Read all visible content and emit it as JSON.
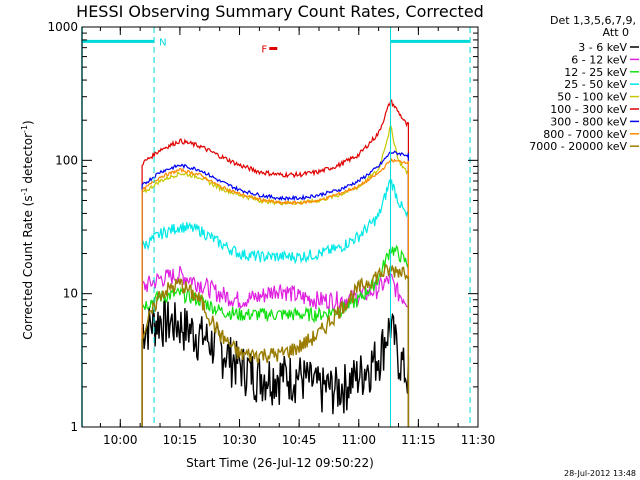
{
  "chart_data": {
    "type": "line",
    "title": "HESSI Observing Summary Count Rates, Corrected",
    "xlabel": "Start Time (26-Jul-12 09:50:22)",
    "ylabel_main": "Corrected Count Rate (s",
    "ylabel_sup1": "-1",
    "ylabel_mid": " detector",
    "ylabel_sup2": "-1",
    "ylabel_end": ")",
    "footer": "28-Jul-2012 13:48",
    "xlim": [
      "09:50:22",
      "11:30:00"
    ],
    "ylim": [
      1,
      1000
    ],
    "yscale": "log",
    "x_ticks": [
      "10:00",
      "10:15",
      "10:30",
      "10:45",
      "11:00",
      "11:15",
      "11:30"
    ],
    "y_ticks": [
      "1",
      "10",
      "100",
      "1000"
    ],
    "legend_header1": "Det 1,3,5,6,7,9,",
    "legend_header2": "Att 0",
    "legend_placement": "right",
    "flags": [
      {
        "label": "N",
        "color": "#00d8d8",
        "start": "09:50:22",
        "end": "10:08:30",
        "y": 780
      },
      {
        "label": "",
        "color": "#00d8d8",
        "start": "11:08:00",
        "end": "11:28:00",
        "y": 780
      },
      {
        "label": "F",
        "color": "#e00000",
        "start": "10:37:30",
        "end": "10:39:30",
        "y": 690
      }
    ],
    "night_lines": [
      "10:08:30",
      "11:28:00"
    ],
    "saa_line": "11:08:00",
    "series": [
      {
        "name": "3 - 6 keV",
        "color": "#000000",
        "key_x": [
          "10:05",
          "10:10",
          "10:15",
          "10:20",
          "10:25",
          "10:30",
          "10:35",
          "10:40",
          "10:45",
          "10:50",
          "10:55",
          "11:00",
          "11:05",
          "11:08",
          "11:10",
          "11:12"
        ],
        "values": [
          5.5,
          6.5,
          6.0,
          5.0,
          4.0,
          3.0,
          2.5,
          2.5,
          2.5,
          2.0,
          2.0,
          2.5,
          3.5,
          6.0,
          3.5,
          2.5
        ]
      },
      {
        "name": "6 - 12 keV",
        "color": "#e020e0",
        "key_x": [
          "10:05",
          "10:10",
          "10:15",
          "10:20",
          "10:25",
          "10:30",
          "10:35",
          "10:40",
          "10:45",
          "10:50",
          "10:55",
          "11:00",
          "11:05",
          "11:08",
          "11:10",
          "11:12"
        ],
        "values": [
          11,
          13,
          14,
          12,
          10,
          9,
          9.5,
          11,
          9.5,
          9,
          9,
          9.5,
          11,
          13,
          10,
          9
        ]
      },
      {
        "name": "12 - 25 keV",
        "color": "#10e010",
        "key_x": [
          "10:05",
          "10:10",
          "10:15",
          "10:20",
          "10:25",
          "10:30",
          "10:35",
          "10:40",
          "10:45",
          "10:50",
          "10:55",
          "11:00",
          "11:05",
          "11:08",
          "11:10",
          "11:12"
        ],
        "values": [
          8,
          9.5,
          10,
          9,
          7.5,
          7,
          7,
          7,
          7,
          7,
          7.5,
          9,
          13,
          22,
          20,
          17
        ]
      },
      {
        "name": "25 - 50 keV",
        "color": "#00e8e8",
        "key_x": [
          "10:05",
          "10:10",
          "10:15",
          "10:20",
          "10:25",
          "10:30",
          "10:35",
          "10:40",
          "10:45",
          "10:50",
          "10:55",
          "11:00",
          "11:05",
          "11:08",
          "11:10",
          "11:12"
        ],
        "values": [
          22,
          28,
          32,
          30,
          24,
          20,
          19,
          19,
          19,
          20,
          22,
          27,
          38,
          72,
          50,
          38
        ]
      },
      {
        "name": "50 - 100 keV",
        "color": "#c8c800",
        "key_x": [
          "10:05",
          "10:10",
          "10:15",
          "10:20",
          "10:25",
          "10:30",
          "10:35",
          "10:40",
          "10:45",
          "10:50",
          "10:55",
          "11:00",
          "11:05",
          "11:08",
          "11:10",
          "11:12"
        ],
        "values": [
          55,
          70,
          80,
          75,
          62,
          55,
          50,
          48,
          48,
          50,
          55,
          63,
          85,
          180,
          100,
          82
        ]
      },
      {
        "name": "100 - 300 keV",
        "color": "#e00000",
        "key_x": [
          "10:05",
          "10:10",
          "10:15",
          "10:20",
          "10:25",
          "10:30",
          "10:35",
          "10:40",
          "10:45",
          "10:50",
          "10:55",
          "11:00",
          "11:05",
          "11:08",
          "11:10",
          "11:12"
        ],
        "values": [
          92,
          120,
          140,
          128,
          108,
          92,
          82,
          78,
          78,
          82,
          92,
          110,
          160,
          280,
          230,
          185
        ]
      },
      {
        "name": "300 - 800 keV",
        "color": "#0000f0",
        "key_x": [
          "10:05",
          "10:10",
          "10:15",
          "10:20",
          "10:25",
          "10:30",
          "10:35",
          "10:40",
          "10:45",
          "10:50",
          "10:55",
          "11:00",
          "11:05",
          "11:08",
          "11:10",
          "11:12"
        ],
        "values": [
          63,
          82,
          92,
          85,
          70,
          60,
          55,
          52,
          52,
          55,
          60,
          70,
          90,
          115,
          113,
          110
        ]
      },
      {
        "name": "800 - 7000 keV",
        "color": "#ff8800",
        "key_x": [
          "10:05",
          "10:10",
          "10:15",
          "10:20",
          "10:25",
          "10:30",
          "10:35",
          "10:40",
          "10:45",
          "10:50",
          "10:55",
          "11:00",
          "11:05",
          "11:08",
          "11:10",
          "11:12"
        ],
        "values": [
          58,
          75,
          85,
          78,
          64,
          56,
          51,
          48,
          48,
          50,
          56,
          64,
          80,
          100,
          98,
          97
        ]
      },
      {
        "name": "7000 - 20000 keV",
        "color": "#9a7d00",
        "key_x": [
          "10:05",
          "10:10",
          "10:15",
          "10:20",
          "10:25",
          "10:30",
          "10:35",
          "10:40",
          "10:45",
          "10:50",
          "10:55",
          "11:00",
          "11:05",
          "11:08",
          "11:10",
          "11:12"
        ],
        "values": [
          4.5,
          10,
          12,
          9,
          5,
          3.5,
          3.5,
          3.5,
          4,
          5,
          7.5,
          11,
          14,
          15,
          15,
          15
        ]
      }
    ]
  }
}
